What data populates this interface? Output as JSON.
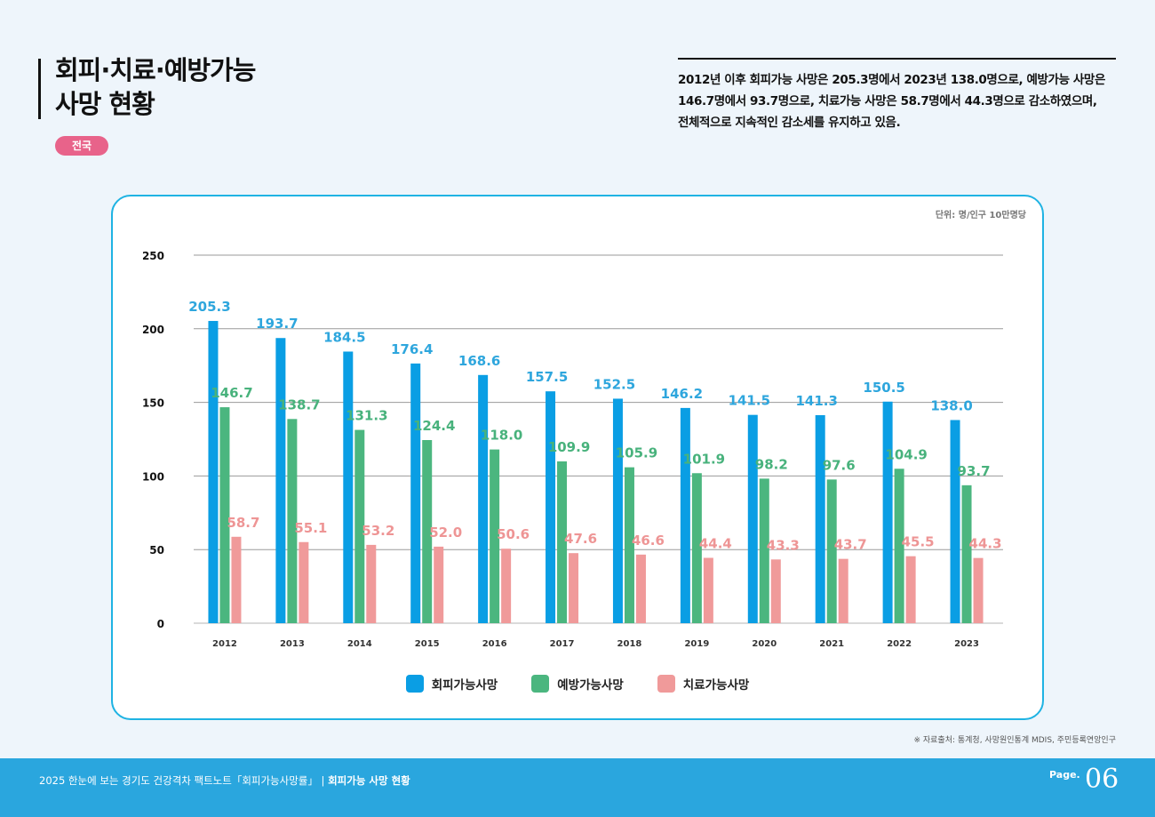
{
  "header": {
    "title": "회피·치료·예방가능\n사망 현황",
    "region_badge": "전국",
    "summary_lines": [
      "2012년 이후 회피가능 사망은 205.3명에서 2023년 138.0명으로, 예방가능 사망은",
      "146.7명에서 93.7명으로, 치료가능 사망은 58.7명에서 44.3명으로 감소하였으며,",
      "전체적으로 지속적인 감소세를 유지하고 있음."
    ]
  },
  "chart_data": {
    "type": "bar",
    "unit_label": "단위: 명/인구 10만명당",
    "categories": [
      "2012",
      "2013",
      "2014",
      "2015",
      "2016",
      "2017",
      "2018",
      "2019",
      "2020",
      "2021",
      "2022",
      "2023"
    ],
    "ylim": [
      0,
      250
    ],
    "yticks": [
      0,
      50,
      100,
      150,
      200,
      250
    ],
    "grid": true,
    "legend_position": "bottom-center",
    "series": [
      {
        "name": "회피가능사망",
        "color": "#0a9ee4",
        "label_color": "#2ea6dd",
        "values": [
          205.3,
          193.7,
          184.5,
          176.4,
          168.6,
          157.5,
          152.5,
          146.2,
          141.5,
          141.3,
          150.5,
          138.0
        ]
      },
      {
        "name": "예방가능사망",
        "color": "#4bb67f",
        "label_color": "#48b27c",
        "values": [
          146.7,
          138.7,
          131.3,
          124.4,
          118.0,
          109.9,
          105.9,
          101.9,
          98.2,
          97.6,
          104.9,
          93.7
        ]
      },
      {
        "name": "치료가능사망",
        "color": "#f09a9a",
        "label_color": "#ee9595",
        "values": [
          58.7,
          55.1,
          53.2,
          52.0,
          50.6,
          47.6,
          46.6,
          44.4,
          43.3,
          43.7,
          45.5,
          44.3
        ]
      }
    ]
  },
  "source_note": "※ 자료출처: 통계청, 사망원인통계 MDIS, 주민등록연앙인구",
  "footer": {
    "publication": "2025 한눈에 보는 경기도 건강격차 팩트노트「회피가능사망률」 |",
    "section": "회피가능 사망 현황",
    "page_label": "Page.",
    "page_number": "06"
  }
}
